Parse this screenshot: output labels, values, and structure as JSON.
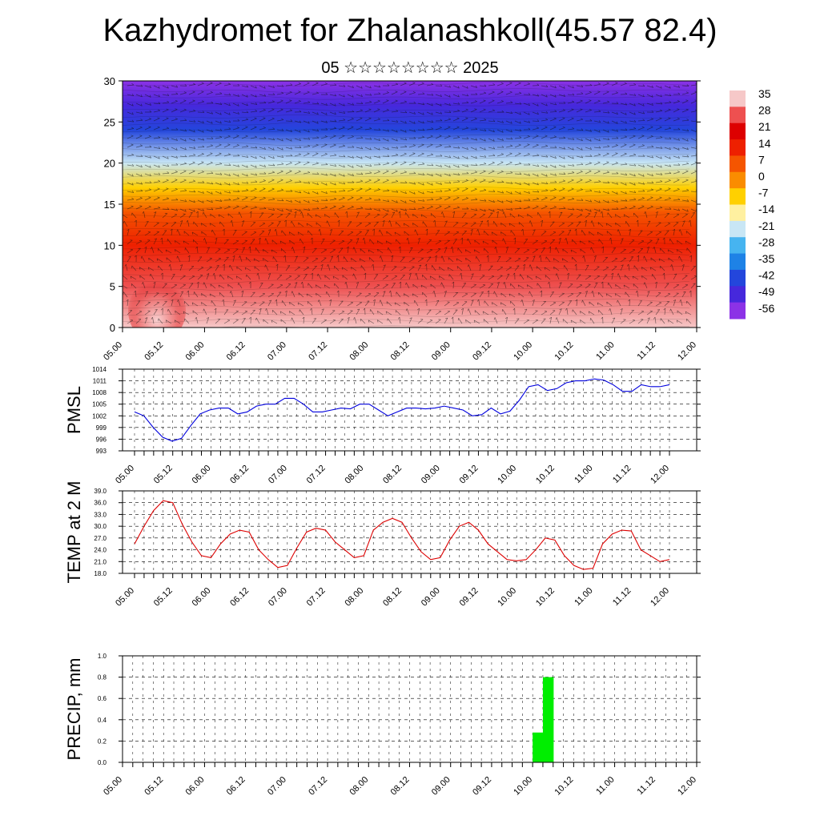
{
  "title": "Kazhydromet for Zhalanashkoll(45.57 82.4)",
  "subtitle": "05 ☆☆☆☆☆☆☆☆ 2025",
  "colors": {
    "pmsl_line": "#0000dd",
    "temp_line": "#dd0000",
    "precip_bar": "#00ee00"
  },
  "time_labels": [
    "05.00",
    "05.12",
    "06.00",
    "06.12",
    "07.00",
    "07.12",
    "08.00",
    "08.12",
    "09.00",
    "09.12",
    "10.00",
    "10.12",
    "11.00",
    "11.12",
    "12.00"
  ],
  "chart_data": [
    {
      "type": "heatmap",
      "title": "",
      "ylabel": "",
      "ylim": [
        0,
        30
      ],
      "yticks": [
        0,
        5,
        10,
        15,
        20,
        25,
        30
      ],
      "colorbar": {
        "labels": [
          "35",
          "28",
          "21",
          "14",
          "7",
          "0",
          "-7",
          "-14",
          "-21",
          "-28",
          "-35",
          "-42",
          "-49",
          "-56"
        ],
        "colors": [
          "#f6c8c8",
          "#ee5050",
          "#dd0000",
          "#ee2000",
          "#f55500",
          "#fa8c00",
          "#ffd000",
          "#fff0a0",
          "#c8e6f5",
          "#46b4f0",
          "#1e82e6",
          "#2346dc",
          "#4628dc",
          "#8c32e6"
        ]
      },
      "temperature_profile": [
        {
          "height": 0,
          "value": 30
        },
        {
          "height": 5,
          "value": 24
        },
        {
          "height": 10,
          "value": 12
        },
        {
          "height": 14,
          "value": 0
        },
        {
          "height": 17,
          "value": -12
        },
        {
          "height": 20,
          "value": -28
        },
        {
          "height": 24,
          "value": -45
        },
        {
          "height": 27,
          "value": -52
        },
        {
          "height": 30,
          "value": -58
        }
      ],
      "features": "wind barbs overlaid"
    },
    {
      "type": "line",
      "ylabel": "PMSL",
      "ylim": [
        993,
        1014
      ],
      "yticks": [
        993,
        996,
        999,
        1002,
        1005,
        1008,
        1011,
        1014
      ],
      "series": [
        {
          "values": [
            1003,
            1002,
            999,
            996.5,
            995.5,
            996.2,
            999.5,
            1002.5,
            1003.5,
            1004,
            1004,
            1002.5,
            1003,
            1004.5,
            1005,
            1005,
            1006.5,
            1006.5,
            1005,
            1003,
            1003,
            1003.5,
            1004,
            1003.8,
            1005,
            1005,
            1003.5,
            1002,
            1003,
            1004,
            1004,
            1003.8,
            1004,
            1004.5,
            1004,
            1003.5,
            1002,
            1002.3,
            1004,
            1002.5,
            1003.2,
            1006,
            1009.5,
            1010,
            1008.5,
            1009,
            1010.5,
            1011,
            1011,
            1011.5,
            1011.2,
            1010,
            1008.3,
            1008.3,
            1010,
            1009.5,
            1009.5,
            1010
          ]
        }
      ]
    },
    {
      "type": "line",
      "ylabel": "TEMP at 2 M",
      "ylim": [
        18,
        39
      ],
      "yticks": [
        "18.0",
        "21.0",
        "24.0",
        "27.0",
        "30.0",
        "33.0",
        "36.0",
        "39.0"
      ],
      "series": [
        {
          "values": [
            25.5,
            30,
            34,
            36.5,
            36,
            30.5,
            26,
            22.5,
            22,
            25.5,
            28,
            29,
            28.5,
            24,
            21.5,
            19.5,
            20,
            24.5,
            28.5,
            29.5,
            29,
            26,
            24,
            22,
            22.5,
            29,
            31,
            32,
            31,
            27,
            23.5,
            21.5,
            22,
            26.5,
            30,
            31,
            29,
            25.5,
            23.5,
            21.5,
            21.2,
            21.5,
            24,
            27,
            26.5,
            22.5,
            20,
            19,
            19.3,
            25.5,
            28,
            29,
            28.8,
            24,
            22.5,
            21,
            21.5
          ]
        }
      ]
    },
    {
      "type": "bar",
      "ylabel": "PRECIP, mm",
      "ylim": [
        0,
        1.0
      ],
      "yticks": [
        "0.0",
        "0.2",
        "0.4",
        "0.6",
        "0.8",
        "1.0"
      ],
      "bars": [
        {
          "time": "10.00",
          "value": 0.28
        },
        {
          "time": "10.03",
          "value": 0.8
        }
      ]
    }
  ]
}
